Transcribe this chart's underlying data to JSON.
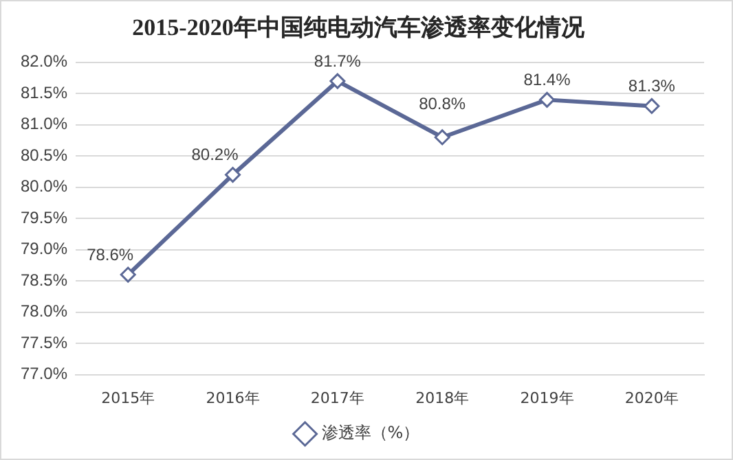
{
  "chart_data": {
    "type": "line",
    "title": "2015-2020年中国纯电动汽车渗透率变化情况",
    "categories": [
      "2015年",
      "2016年",
      "2017年",
      "2018年",
      "2019年",
      "2020年"
    ],
    "series": [
      {
        "name": "渗透率（%）",
        "color": "#5b6896",
        "values": [
          78.6,
          80.2,
          81.7,
          80.8,
          81.4,
          81.3
        ],
        "value_labels": [
          "78.6%",
          "80.2%",
          "81.7%",
          "80.8%",
          "81.4%",
          "81.3%"
        ]
      }
    ],
    "ylim": [
      77,
      82
    ],
    "yticks": [
      {
        "value": 77,
        "label": "77.0%"
      },
      {
        "value": 77.5,
        "label": "77.5%"
      },
      {
        "value": 78,
        "label": "78.0%"
      },
      {
        "value": 78.5,
        "label": "78.5%"
      },
      {
        "value": 79,
        "label": "79.0%"
      },
      {
        "value": 79.5,
        "label": "79.5%"
      },
      {
        "value": 80,
        "label": "80.0%"
      },
      {
        "value": 80.5,
        "label": "80.5%"
      },
      {
        "value": 81,
        "label": "81.0%"
      },
      {
        "value": 81.5,
        "label": "81.5%"
      },
      {
        "value": 82,
        "label": "82.0%"
      }
    ],
    "grid": "y",
    "legend": "bottom",
    "marker": "diamond",
    "line_style": "solid"
  }
}
